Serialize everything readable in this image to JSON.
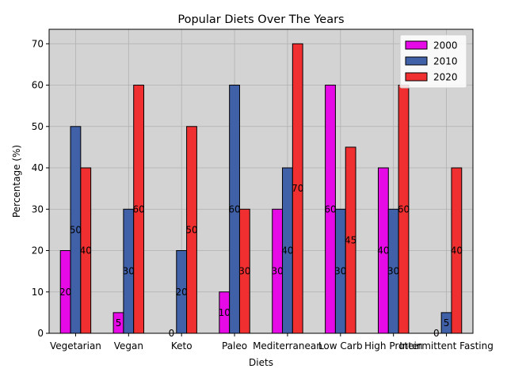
{
  "chart_data": {
    "type": "bar",
    "title": "Popular Diets Over The Years",
    "xlabel": "Diets",
    "ylabel": "Percentage (%)",
    "categories": [
      "Vegetarian",
      "Vegan",
      "Keto",
      "Paleo",
      "Mediterranean",
      "Low Carb",
      "High Protein",
      "Intermittent Fasting"
    ],
    "series": [
      {
        "name": "2000",
        "color": "#e60ae6",
        "values": [
          20,
          5,
          0,
          10,
          30,
          60,
          40,
          0
        ]
      },
      {
        "name": "2010",
        "color": "#4060a8",
        "values": [
          50,
          30,
          20,
          60,
          40,
          30,
          30,
          5
        ]
      },
      {
        "name": "2020",
        "color": "#f03030",
        "values": [
          40,
          60,
          50,
          30,
          70,
          45,
          60,
          40
        ]
      }
    ],
    "ylim": [
      0,
      73.5
    ],
    "yticks": [
      0,
      10,
      20,
      30,
      40,
      50,
      60,
      70
    ],
    "grid": true,
    "legend_position": "top-right",
    "plot_background": "#d3d3d3",
    "bar_edge_color": "#000000"
  }
}
